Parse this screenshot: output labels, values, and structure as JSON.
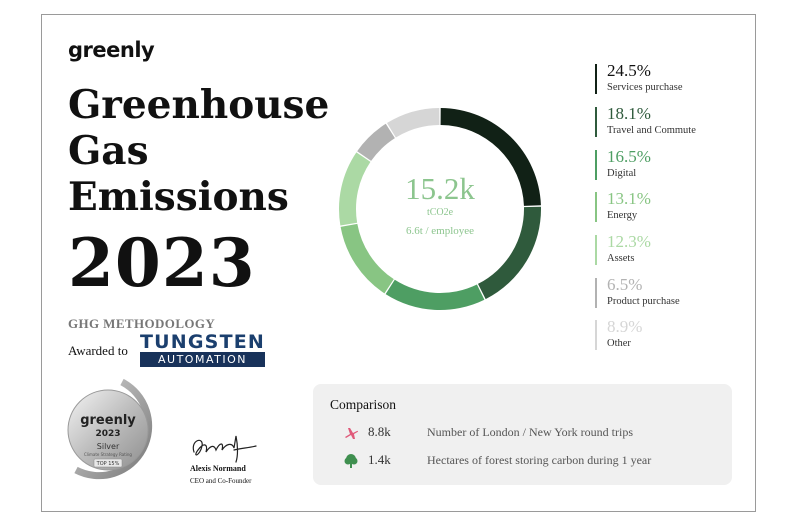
{
  "brand": {
    "logo": "greenly"
  },
  "title_lines": [
    "Greenhouse",
    "Gas",
    "Emissions"
  ],
  "year": "2023",
  "methodology": "GHG METHODOLOGY",
  "awarded_to": "Awarded to",
  "company_logo": {
    "line1": "TUNGSTEN",
    "line2": "AUTOMATION"
  },
  "badge": {
    "brand": "greenly",
    "year": "2023",
    "level": "Silver",
    "subtitle": "Climate Strategy Rating",
    "rank": "TOP 15%"
  },
  "signature": {
    "name": "Alexis Normand",
    "role": "CEO and Co-Founder"
  },
  "total": {
    "value": "15.2k",
    "unit": "tCO2e",
    "per_employee": "6.6t / employee"
  },
  "chart_data": {
    "type": "pie",
    "variant": "donut",
    "center_text": [
      "15.2k",
      "tCO2e",
      "6.6t / employee"
    ],
    "legend_position": "right",
    "slices": [
      {
        "label": "Services purchase",
        "value": 24.5,
        "display": "24.5%",
        "color": "#112116"
      },
      {
        "label": "Travel and Commute",
        "value": 18.1,
        "display": "18.1%",
        "color": "#2f5a3c"
      },
      {
        "label": "Digital",
        "value": 16.5,
        "display": "16.5%",
        "color": "#4e9e63"
      },
      {
        "label": "Energy",
        "value": 13.1,
        "display": "13.1%",
        "color": "#88c583"
      },
      {
        "label": "Assets",
        "value": 12.3,
        "display": "12.3%",
        "color": "#abd9a4"
      },
      {
        "label": "Product purchase",
        "value": 6.5,
        "display": "6.5%",
        "color": "#b2b2b2"
      },
      {
        "label": "Other",
        "value": 8.9,
        "display": "8.9%",
        "color": "#d6d6d6"
      }
    ]
  },
  "comparison": {
    "title": "Comparison",
    "rows": [
      {
        "icon": "airplane-icon",
        "value": "8.8k",
        "text": "Number of London / New York round trips"
      },
      {
        "icon": "tree-icon",
        "value": "1.4k",
        "text": "Hectares of forest storing carbon during 1 year"
      }
    ]
  }
}
